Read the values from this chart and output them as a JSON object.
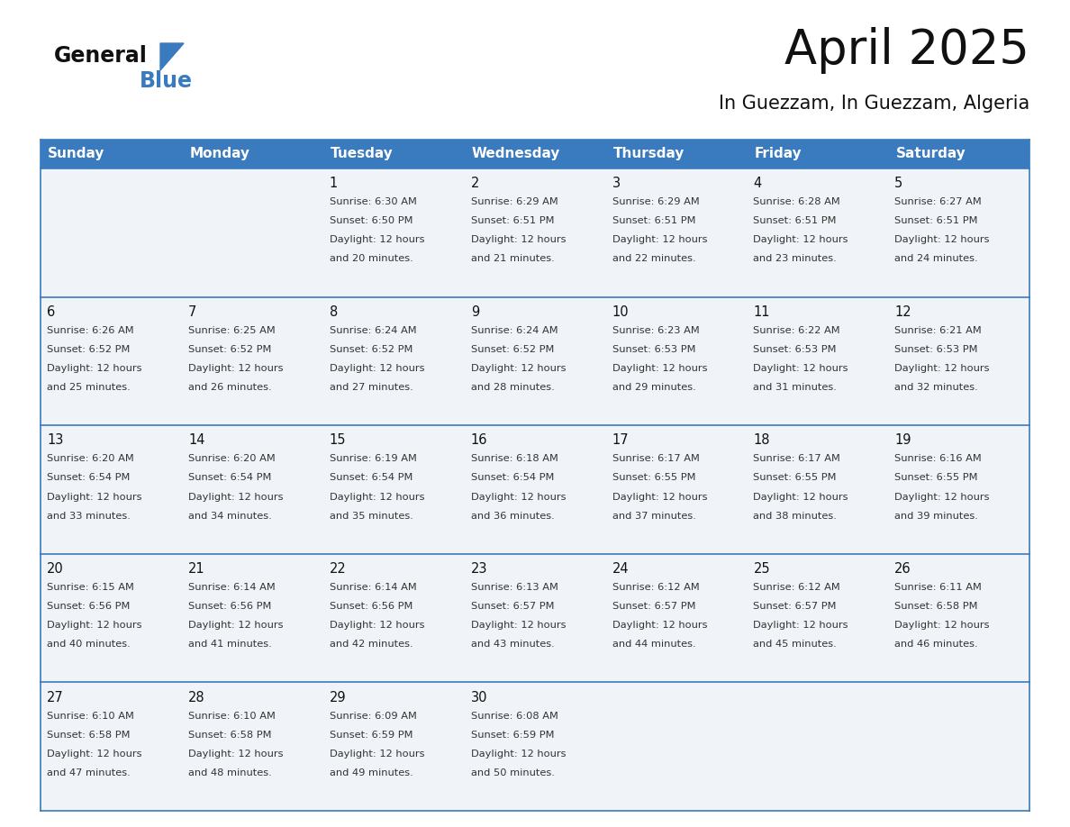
{
  "title": "April 2025",
  "subtitle": "In Guezzam, In Guezzam, Algeria",
  "days_of_week": [
    "Sunday",
    "Monday",
    "Tuesday",
    "Wednesday",
    "Thursday",
    "Friday",
    "Saturday"
  ],
  "header_bg_color": "#3a7abf",
  "header_text_color": "#ffffff",
  "cell_bg_odd": "#f0f4f8",
  "cell_bg_even": "#f0f4f8",
  "grid_line_color": "#3a7abf",
  "title_color": "#111111",
  "subtitle_color": "#111111",
  "cell_text_color": "#333333",
  "day_num_color": "#111111",
  "logo_general_color": "#111111",
  "logo_blue_color": "#3a7abf",
  "logo_triangle_color": "#3a7abf",
  "calendar_data": [
    [
      {
        "day": null,
        "sunrise": null,
        "sunset": null,
        "daylight_min": null
      },
      {
        "day": null,
        "sunrise": null,
        "sunset": null,
        "daylight_min": null
      },
      {
        "day": 1,
        "sunrise": "6:30 AM",
        "sunset": "6:50 PM",
        "daylight_min": 20
      },
      {
        "day": 2,
        "sunrise": "6:29 AM",
        "sunset": "6:51 PM",
        "daylight_min": 21
      },
      {
        "day": 3,
        "sunrise": "6:29 AM",
        "sunset": "6:51 PM",
        "daylight_min": 22
      },
      {
        "day": 4,
        "sunrise": "6:28 AM",
        "sunset": "6:51 PM",
        "daylight_min": 23
      },
      {
        "day": 5,
        "sunrise": "6:27 AM",
        "sunset": "6:51 PM",
        "daylight_min": 24
      }
    ],
    [
      {
        "day": 6,
        "sunrise": "6:26 AM",
        "sunset": "6:52 PM",
        "daylight_min": 25
      },
      {
        "day": 7,
        "sunrise": "6:25 AM",
        "sunset": "6:52 PM",
        "daylight_min": 26
      },
      {
        "day": 8,
        "sunrise": "6:24 AM",
        "sunset": "6:52 PM",
        "daylight_min": 27
      },
      {
        "day": 9,
        "sunrise": "6:24 AM",
        "sunset": "6:52 PM",
        "daylight_min": 28
      },
      {
        "day": 10,
        "sunrise": "6:23 AM",
        "sunset": "6:53 PM",
        "daylight_min": 29
      },
      {
        "day": 11,
        "sunrise": "6:22 AM",
        "sunset": "6:53 PM",
        "daylight_min": 31
      },
      {
        "day": 12,
        "sunrise": "6:21 AM",
        "sunset": "6:53 PM",
        "daylight_min": 32
      }
    ],
    [
      {
        "day": 13,
        "sunrise": "6:20 AM",
        "sunset": "6:54 PM",
        "daylight_min": 33
      },
      {
        "day": 14,
        "sunrise": "6:20 AM",
        "sunset": "6:54 PM",
        "daylight_min": 34
      },
      {
        "day": 15,
        "sunrise": "6:19 AM",
        "sunset": "6:54 PM",
        "daylight_min": 35
      },
      {
        "day": 16,
        "sunrise": "6:18 AM",
        "sunset": "6:54 PM",
        "daylight_min": 36
      },
      {
        "day": 17,
        "sunrise": "6:17 AM",
        "sunset": "6:55 PM",
        "daylight_min": 37
      },
      {
        "day": 18,
        "sunrise": "6:17 AM",
        "sunset": "6:55 PM",
        "daylight_min": 38
      },
      {
        "day": 19,
        "sunrise": "6:16 AM",
        "sunset": "6:55 PM",
        "daylight_min": 39
      }
    ],
    [
      {
        "day": 20,
        "sunrise": "6:15 AM",
        "sunset": "6:56 PM",
        "daylight_min": 40
      },
      {
        "day": 21,
        "sunrise": "6:14 AM",
        "sunset": "6:56 PM",
        "daylight_min": 41
      },
      {
        "day": 22,
        "sunrise": "6:14 AM",
        "sunset": "6:56 PM",
        "daylight_min": 42
      },
      {
        "day": 23,
        "sunrise": "6:13 AM",
        "sunset": "6:57 PM",
        "daylight_min": 43
      },
      {
        "day": 24,
        "sunrise": "6:12 AM",
        "sunset": "6:57 PM",
        "daylight_min": 44
      },
      {
        "day": 25,
        "sunrise": "6:12 AM",
        "sunset": "6:57 PM",
        "daylight_min": 45
      },
      {
        "day": 26,
        "sunrise": "6:11 AM",
        "sunset": "6:58 PM",
        "daylight_min": 46
      }
    ],
    [
      {
        "day": 27,
        "sunrise": "6:10 AM",
        "sunset": "6:58 PM",
        "daylight_min": 47
      },
      {
        "day": 28,
        "sunrise": "6:10 AM",
        "sunset": "6:58 PM",
        "daylight_min": 48
      },
      {
        "day": 29,
        "sunrise": "6:09 AM",
        "sunset": "6:59 PM",
        "daylight_min": 49
      },
      {
        "day": 30,
        "sunrise": "6:08 AM",
        "sunset": "6:59 PM",
        "daylight_min": 50
      },
      {
        "day": null,
        "sunrise": null,
        "sunset": null,
        "daylight_min": null
      },
      {
        "day": null,
        "sunrise": null,
        "sunset": null,
        "daylight_min": null
      },
      {
        "day": null,
        "sunrise": null,
        "sunset": null,
        "daylight_min": null
      }
    ]
  ]
}
